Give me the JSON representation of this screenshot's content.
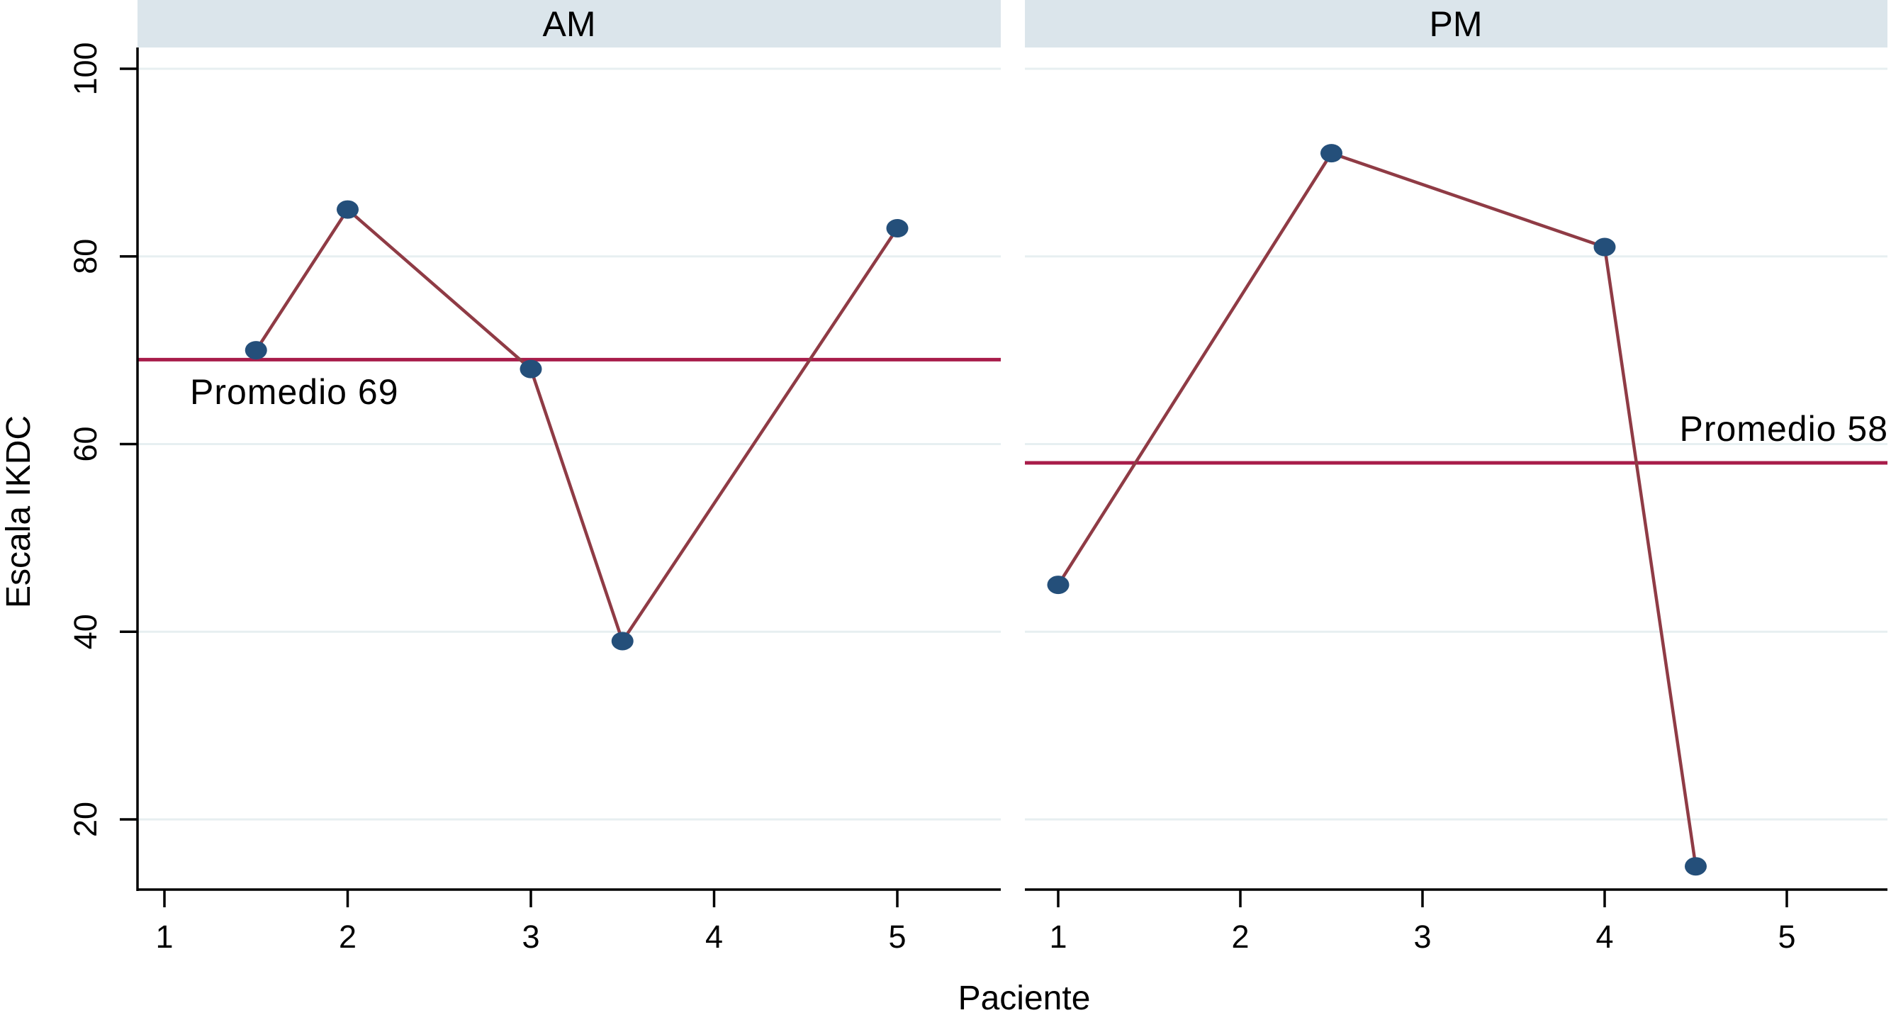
{
  "chart_data": {
    "type": "line",
    "faceted": true,
    "x_label": "Paciente",
    "y_label": "Escala IKDC",
    "x_ticks": [
      1,
      2,
      3,
      4,
      5
    ],
    "y_ticks": [
      20,
      40,
      60,
      80,
      100
    ],
    "y_axis_rotated_labels": true,
    "grid": true,
    "ylim_displayed": [
      12.5,
      102.3
    ],
    "panels": [
      {
        "title": "AM",
        "series": [
          {
            "name": "Escala IKDC",
            "points": [
              {
                "x": 1.5,
                "y": 70
              },
              {
                "x": 2,
                "y": 85
              },
              {
                "x": 3,
                "y": 68
              },
              {
                "x": 3.5,
                "y": 39
              },
              {
                "x": 5,
                "y": 83
              }
            ]
          }
        ],
        "reference_line": {
          "value": 69,
          "label": "Promedio 69",
          "label_side": "below-left"
        }
      },
      {
        "title": "PM",
        "series": [
          {
            "name": "Escala IKDC",
            "points": [
              {
                "x": 1,
                "y": 45
              },
              {
                "x": 2.5,
                "y": 91
              },
              {
                "x": 4,
                "y": 81
              },
              {
                "x": 4.5,
                "y": 15
              }
            ]
          }
        ],
        "reference_line": {
          "value": 58,
          "label": "Promedio 58",
          "label_side": "above-right"
        }
      }
    ],
    "colors": {
      "series_line": "#8f3b45",
      "marker": "#244f7a",
      "reference_line": "#a81c4a",
      "header_band": "#dbe5eb",
      "grid_line": "#e7eff1",
      "axis": "#000000",
      "background": "#ffffff"
    }
  }
}
